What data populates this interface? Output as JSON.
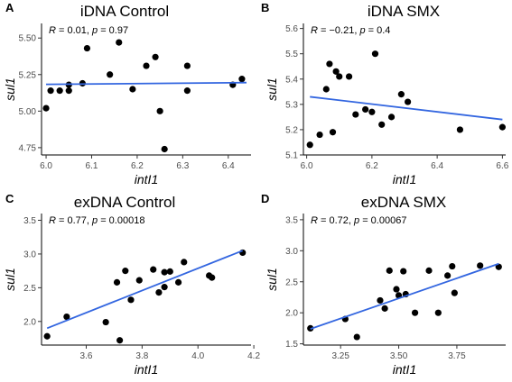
{
  "chart_data": [
    {
      "type": "scatter",
      "panel": "A",
      "title": "iDNA Control",
      "xlabel": "intI1",
      "ylabel": "sul1",
      "annotation": {
        "r_label": "R",
        "r_value": "= 0.01,",
        "p_label": "p",
        "p_value": "= 0.97"
      },
      "xlim": [
        5.99,
        6.45
      ],
      "ylim": [
        4.7,
        5.6
      ],
      "xticks": [
        6.0,
        6.1,
        6.2,
        6.3,
        6.4
      ],
      "xtick_labels": [
        "6.0",
        "6.1",
        "6.2",
        "6.3",
        "6.4"
      ],
      "yticks": [
        4.75,
        5.0,
        5.25,
        5.5
      ],
      "ytick_labels": [
        "4.75",
        "5.00",
        "5.25",
        "5.50"
      ],
      "points": [
        [
          6.0,
          5.02
        ],
        [
          6.01,
          5.14
        ],
        [
          6.03,
          5.14
        ],
        [
          6.05,
          5.14
        ],
        [
          6.05,
          5.18
        ],
        [
          6.08,
          5.19
        ],
        [
          6.09,
          5.43
        ],
        [
          6.14,
          5.25
        ],
        [
          6.16,
          5.47
        ],
        [
          6.19,
          5.15
        ],
        [
          6.22,
          5.31
        ],
        [
          6.24,
          5.37
        ],
        [
          6.25,
          5.0
        ],
        [
          6.26,
          4.74
        ],
        [
          6.31,
          5.31
        ],
        [
          6.31,
          5.14
        ],
        [
          6.41,
          5.18
        ],
        [
          6.43,
          5.22
        ]
      ],
      "fit": [
        [
          6.0,
          5.183
        ],
        [
          6.44,
          5.195
        ]
      ],
      "grid": false,
      "point_color": "#000000",
      "line_color": "#3366e0"
    },
    {
      "type": "scatter",
      "panel": "B",
      "title": "iDNA SMX",
      "xlabel": "intI1",
      "ylabel": "sul1",
      "annotation": {
        "r_label": "R",
        "r_value": "= −0.21,",
        "p_label": "p",
        "p_value": "= 0.4"
      },
      "xlim": [
        5.99,
        6.61
      ],
      "ylim": [
        5.1,
        5.62
      ],
      "xticks": [
        6.0,
        6.2,
        6.4,
        6.6
      ],
      "xtick_labels": [
        "6.0",
        "6.2",
        "6.4",
        "6.6"
      ],
      "yticks": [
        5.1,
        5.2,
        5.3,
        5.4,
        5.5,
        5.6
      ],
      "ytick_labels": [
        "5.1",
        "5.2",
        "5.3",
        "5.4",
        "5.5",
        "5.6"
      ],
      "points": [
        [
          6.01,
          5.14
        ],
        [
          6.04,
          5.18
        ],
        [
          6.06,
          5.36
        ],
        [
          6.07,
          5.46
        ],
        [
          6.08,
          5.19
        ],
        [
          6.09,
          5.43
        ],
        [
          6.1,
          5.41
        ],
        [
          6.13,
          5.41
        ],
        [
          6.15,
          5.26
        ],
        [
          6.18,
          5.28
        ],
        [
          6.2,
          5.27
        ],
        [
          6.21,
          5.5
        ],
        [
          6.23,
          5.22
        ],
        [
          6.26,
          5.25
        ],
        [
          6.29,
          5.34
        ],
        [
          6.31,
          5.31
        ],
        [
          6.47,
          5.2
        ],
        [
          6.6,
          5.21
        ]
      ],
      "fit": [
        [
          6.01,
          5.33
        ],
        [
          6.6,
          5.24
        ]
      ],
      "grid": false,
      "point_color": "#000000",
      "line_color": "#3366e0"
    },
    {
      "type": "scatter",
      "panel": "C",
      "title": "exDNA Control",
      "xlabel": "intI1",
      "ylabel": "sul1",
      "annotation": {
        "r_label": "R",
        "r_value": "= 0.77,",
        "p_label": "p",
        "p_value": "= 0.00018"
      },
      "xlim": [
        3.44,
        4.19
      ],
      "ylim": [
        1.65,
        3.6
      ],
      "xticks": [
        3.6,
        3.8,
        4.0,
        4.2
      ],
      "xtick_labels": [
        "3.6",
        "3.8",
        "4.0",
        "4.2"
      ],
      "yticks": [
        2.0,
        2.5,
        3.0,
        3.5
      ],
      "ytick_labels": [
        "2.0",
        "2.5",
        "3.0",
        "3.5"
      ],
      "points": [
        [
          3.46,
          1.78
        ],
        [
          3.53,
          2.07
        ],
        [
          3.67,
          1.99
        ],
        [
          3.71,
          2.58
        ],
        [
          3.72,
          1.72
        ],
        [
          3.74,
          2.75
        ],
        [
          3.76,
          2.32
        ],
        [
          3.79,
          2.61
        ],
        [
          3.84,
          2.77
        ],
        [
          3.86,
          2.43
        ],
        [
          3.88,
          2.73
        ],
        [
          3.88,
          2.51
        ],
        [
          3.9,
          2.74
        ],
        [
          3.93,
          2.58
        ],
        [
          3.95,
          2.88
        ],
        [
          4.04,
          2.68
        ],
        [
          4.05,
          2.65
        ],
        [
          4.16,
          3.02
        ]
      ],
      "fit": [
        [
          3.46,
          1.9
        ],
        [
          4.16,
          3.05
        ]
      ],
      "grid": false,
      "point_color": "#000000",
      "line_color": "#3366e0"
    },
    {
      "type": "scatter",
      "panel": "D",
      "title": "exDNA SMX",
      "xlabel": "intI1",
      "ylabel": "sul1",
      "annotation": {
        "r_label": "R",
        "r_value": "= 0.72,",
        "p_label": "p",
        "p_value": "= 0.00067"
      },
      "xlim": [
        3.09,
        3.96
      ],
      "ylim": [
        1.48,
        3.6
      ],
      "xticks": [
        3.25,
        3.5,
        3.75
      ],
      "xtick_labels": [
        "3.25",
        "3.50",
        "3.75"
      ],
      "yticks": [
        1.5,
        2.0,
        2.5,
        3.0,
        3.5
      ],
      "ytick_labels": [
        "1.5",
        "2.0",
        "2.5",
        "3.0",
        "3.5"
      ],
      "points": [
        [
          3.12,
          1.75
        ],
        [
          3.27,
          1.9
        ],
        [
          3.32,
          1.61
        ],
        [
          3.42,
          2.2
        ],
        [
          3.44,
          2.07
        ],
        [
          3.46,
          2.68
        ],
        [
          3.49,
          2.38
        ],
        [
          3.5,
          2.28
        ],
        [
          3.52,
          2.67
        ],
        [
          3.53,
          2.3
        ],
        [
          3.57,
          2.0
        ],
        [
          3.63,
          2.68
        ],
        [
          3.67,
          2.0
        ],
        [
          3.71,
          2.6
        ],
        [
          3.73,
          2.75
        ],
        [
          3.74,
          2.32
        ],
        [
          3.85,
          2.76
        ],
        [
          3.93,
          2.74
        ]
      ],
      "fit": [
        [
          3.12,
          1.74
        ],
        [
          3.93,
          2.79
        ]
      ],
      "grid": false,
      "point_color": "#000000",
      "line_color": "#3366e0"
    }
  ]
}
